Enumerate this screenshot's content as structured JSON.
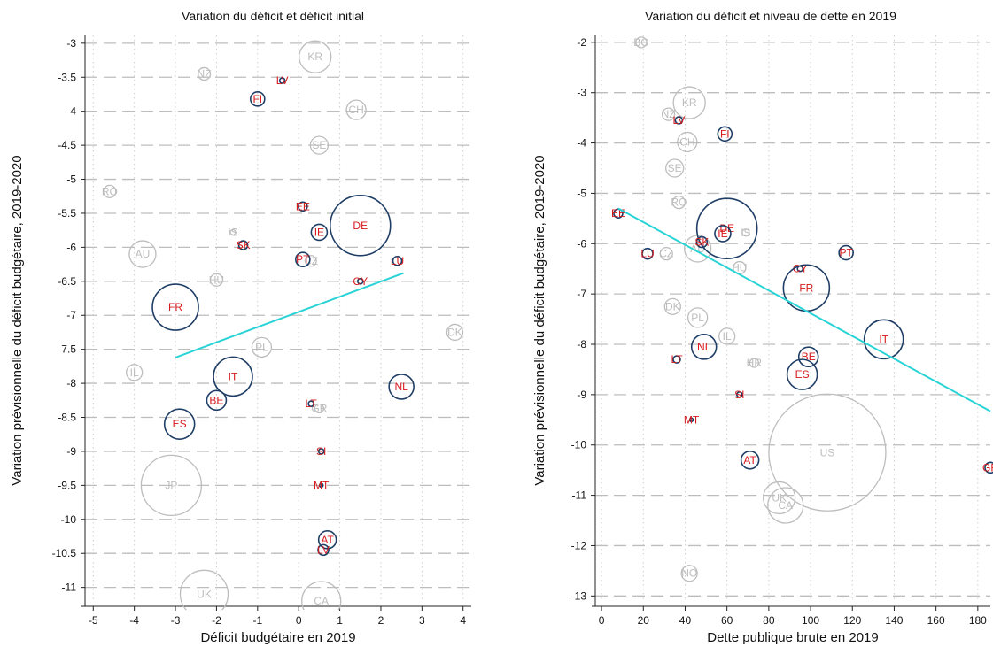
{
  "colors": {
    "eu": "#1f3e66",
    "eu_label": "#d7191c",
    "other": "#bdbdbd",
    "other_label": "#bdbdbd",
    "fit": "#29d3d6"
  },
  "chart_data": [
    {
      "type": "scatter",
      "title": "Variation du déficit et déficit initial",
      "xlabel": "Déficit budgétaire en 2019",
      "ylabel": "Variation prévisionnelle du déficit budgétaire, 2019-2020",
      "xlim": [
        -5.2,
        4.2
      ],
      "ylim": [
        -11.2,
        -2.95
      ],
      "xticks": [
        "-5",
        "-4",
        "-3",
        "-2",
        "-1",
        "0",
        "1",
        "2",
        "3",
        "4"
      ],
      "yticks": [
        "-3",
        "-3.5",
        "-4",
        "-4.5",
        "-5",
        "-5.5",
        "-6",
        "-6.5",
        "-7",
        "-7.5",
        "-8",
        "-8.5",
        "-9",
        "-9.5",
        "-10",
        "-10.5",
        "-11"
      ],
      "grid": true,
      "fit_line": {
        "x": [
          -3.0,
          2.55
        ],
        "y": [
          -7.62,
          -6.38
        ]
      },
      "points": [
        {
          "label": "KR",
          "x": 0.4,
          "y": -3.2,
          "r": 18,
          "group": "other"
        },
        {
          "label": "NZ",
          "x": -2.3,
          "y": -3.45,
          "r": 7,
          "group": "other"
        },
        {
          "label": "LV",
          "x": -0.4,
          "y": -3.55,
          "r": 3,
          "group": "eu"
        },
        {
          "label": "FI",
          "x": -1.0,
          "y": -3.82,
          "r": 8,
          "group": "eu"
        },
        {
          "label": "CH",
          "x": 1.4,
          "y": -3.98,
          "r": 11,
          "group": "other"
        },
        {
          "label": "SE",
          "x": 0.5,
          "y": -4.5,
          "r": 10,
          "group": "other"
        },
        {
          "label": "RO",
          "x": -4.6,
          "y": -5.18,
          "r": 7,
          "group": "other"
        },
        {
          "label": "EE",
          "x": 0.1,
          "y": -5.4,
          "r": 5,
          "group": "eu"
        },
        {
          "label": "DE",
          "x": 1.5,
          "y": -5.68,
          "r": 34,
          "group": "eu"
        },
        {
          "label": "IE",
          "x": 0.5,
          "y": -5.78,
          "r": 9,
          "group": "eu"
        },
        {
          "label": "IS",
          "x": -1.6,
          "y": -5.78,
          "r": 3,
          "group": "other"
        },
        {
          "label": "SK",
          "x": -1.35,
          "y": -5.97,
          "r": 5,
          "group": "eu"
        },
        {
          "label": "AU",
          "x": -3.8,
          "y": -6.1,
          "r": 15,
          "group": "other"
        },
        {
          "label": "PT",
          "x": 0.1,
          "y": -6.18,
          "r": 8,
          "group": "eu"
        },
        {
          "label": "CZ",
          "x": 0.3,
          "y": -6.2,
          "r": 6,
          "group": "other"
        },
        {
          "label": "LU",
          "x": 2.4,
          "y": -6.2,
          "r": 5,
          "group": "eu"
        },
        {
          "label": "HU",
          "x": -2.0,
          "y": -6.48,
          "r": 7,
          "group": "other"
        },
        {
          "label": "CY",
          "x": 1.5,
          "y": -6.5,
          "r": 3,
          "group": "eu"
        },
        {
          "label": "FR",
          "x": -3.0,
          "y": -6.88,
          "r": 26,
          "group": "eu"
        },
        {
          "label": "DK",
          "x": 3.8,
          "y": -7.25,
          "r": 9,
          "group": "other"
        },
        {
          "label": "PL",
          "x": -0.9,
          "y": -7.47,
          "r": 11,
          "group": "other"
        },
        {
          "label": "IL",
          "x": -4.0,
          "y": -7.84,
          "r": 9,
          "group": "other"
        },
        {
          "label": "IT",
          "x": -1.6,
          "y": -7.9,
          "r": 22,
          "group": "eu"
        },
        {
          "label": "NL",
          "x": 2.5,
          "y": -8.05,
          "r": 14,
          "group": "eu"
        },
        {
          "label": "BE",
          "x": -2.0,
          "y": -8.25,
          "r": 11,
          "group": "eu"
        },
        {
          "label": "LT",
          "x": 0.3,
          "y": -8.3,
          "r": 3,
          "group": "eu"
        },
        {
          "label": "GR",
          "x": 0.5,
          "y": -8.37,
          "r": 5,
          "group": "other"
        },
        {
          "label": "ES",
          "x": -2.9,
          "y": -8.6,
          "r": 17,
          "group": "eu"
        },
        {
          "label": "SI",
          "x": 0.55,
          "y": -9.0,
          "r": 3,
          "group": "eu"
        },
        {
          "label": "JP",
          "x": -3.1,
          "y": -9.5,
          "r": 34,
          "group": "other"
        },
        {
          "label": "MT",
          "x": 0.55,
          "y": -9.5,
          "r": 2,
          "group": "eu"
        },
        {
          "label": "AT",
          "x": 0.7,
          "y": -10.3,
          "r": 10,
          "group": "eu"
        },
        {
          "label": "LV",
          "x": 0.6,
          "y": -10.45,
          "r": 6,
          "group": "eu"
        },
        {
          "label": "UK",
          "x": -2.3,
          "y": -11.1,
          "r": 27,
          "group": "other"
        },
        {
          "label": "CA",
          "x": 0.55,
          "y": -11.2,
          "r": 22,
          "group": "other"
        }
      ]
    },
    {
      "type": "scatter",
      "title": "Variation du déficit et niveau de dette en 2019",
      "xlabel": "Dette publique brute en 2019",
      "ylabel": "Variation prévisionnelle du déficit budgétaire, 2019-2020",
      "xlim": [
        -3,
        186
      ],
      "ylim": [
        -13.1,
        -1.95
      ],
      "xticks": [
        "0",
        "20",
        "40",
        "60",
        "80",
        "100",
        "120",
        "140",
        "160",
        "180"
      ],
      "yticks": [
        "-2",
        "-3",
        "-4",
        "-5",
        "-6",
        "-7",
        "-8",
        "-9",
        "-10",
        "-11",
        "-12",
        "-13"
      ],
      "grid": true,
      "fit_line": {
        "x": [
          8,
          186
        ],
        "y": [
          -5.3,
          -9.33
        ]
      },
      "points": [
        {
          "label": "BG",
          "x": 19,
          "y": -2.0,
          "r": 6,
          "group": "other"
        },
        {
          "label": "KR",
          "x": 42,
          "y": -3.2,
          "r": 18,
          "group": "other"
        },
        {
          "label": "NZ",
          "x": 32,
          "y": -3.43,
          "r": 7,
          "group": "other"
        },
        {
          "label": "LV",
          "x": 37,
          "y": -3.55,
          "r": 4,
          "group": "eu"
        },
        {
          "label": "FI",
          "x": 59,
          "y": -3.82,
          "r": 8,
          "group": "eu"
        },
        {
          "label": "CH",
          "x": 41,
          "y": -3.98,
          "r": 11,
          "group": "other"
        },
        {
          "label": "SE",
          "x": 35,
          "y": -4.5,
          "r": 10,
          "group": "other"
        },
        {
          "label": "RO",
          "x": 37,
          "y": -5.18,
          "r": 7,
          "group": "other"
        },
        {
          "label": "EE",
          "x": 8,
          "y": -5.4,
          "r": 5,
          "group": "eu"
        },
        {
          "label": "DE",
          "x": 60,
          "y": -5.7,
          "r": 34,
          "group": "eu"
        },
        {
          "label": "IE",
          "x": 58,
          "y": -5.8,
          "r": 9,
          "group": "eu"
        },
        {
          "label": "IS",
          "x": 69,
          "y": -5.78,
          "r": 4,
          "group": "other"
        },
        {
          "label": "SK",
          "x": 48,
          "y": -5.97,
          "r": 6,
          "group": "eu"
        },
        {
          "label": "AU",
          "x": 46,
          "y": -6.1,
          "r": 15,
          "group": "other"
        },
        {
          "label": "LU",
          "x": 22,
          "y": -6.2,
          "r": 6,
          "group": "eu"
        },
        {
          "label": "CZ",
          "x": 31,
          "y": -6.2,
          "r": 7,
          "group": "other"
        },
        {
          "label": "PT",
          "x": 117,
          "y": -6.18,
          "r": 8,
          "group": "eu"
        },
        {
          "label": "HU",
          "x": 66,
          "y": -6.48,
          "r": 7,
          "group": "other"
        },
        {
          "label": "CY",
          "x": 95,
          "y": -6.5,
          "r": 3,
          "group": "eu"
        },
        {
          "label": "FR",
          "x": 98,
          "y": -6.88,
          "r": 26,
          "group": "eu"
        },
        {
          "label": "DK",
          "x": 34,
          "y": -7.25,
          "r": 9,
          "group": "other"
        },
        {
          "label": "PL",
          "x": 46,
          "y": -7.47,
          "r": 11,
          "group": "other"
        },
        {
          "label": "IL",
          "x": 60,
          "y": -7.84,
          "r": 9,
          "group": "other"
        },
        {
          "label": "IT",
          "x": 135,
          "y": -7.9,
          "r": 22,
          "group": "eu"
        },
        {
          "label": "NL",
          "x": 49,
          "y": -8.05,
          "r": 14,
          "group": "eu"
        },
        {
          "label": "BE",
          "x": 99,
          "y": -8.25,
          "r": 11,
          "group": "eu"
        },
        {
          "label": "LT",
          "x": 36,
          "y": -8.3,
          "r": 4,
          "group": "eu"
        },
        {
          "label": "HR",
          "x": 73,
          "y": -8.37,
          "r": 5,
          "group": "other"
        },
        {
          "label": "ES",
          "x": 96,
          "y": -8.6,
          "r": 17,
          "group": "eu"
        },
        {
          "label": "SI",
          "x": 66,
          "y": -9.0,
          "r": 3,
          "group": "eu"
        },
        {
          "label": "MT",
          "x": 43,
          "y": -9.5,
          "r": 2,
          "group": "eu"
        },
        {
          "label": "US",
          "x": 108,
          "y": -10.15,
          "r": 66,
          "group": "other"
        },
        {
          "label": "AT",
          "x": 71,
          "y": -10.3,
          "r": 10,
          "group": "eu"
        },
        {
          "label": "GR",
          "x": 186,
          "y": -10.45,
          "r": 6,
          "group": "eu"
        },
        {
          "label": "UK",
          "x": 85,
          "y": -11.05,
          "r": 18,
          "group": "other"
        },
        {
          "label": "CA",
          "x": 88,
          "y": -11.2,
          "r": 20,
          "group": "other"
        },
        {
          "label": "NO",
          "x": 42,
          "y": -12.55,
          "r": 9,
          "group": "other"
        }
      ]
    }
  ]
}
